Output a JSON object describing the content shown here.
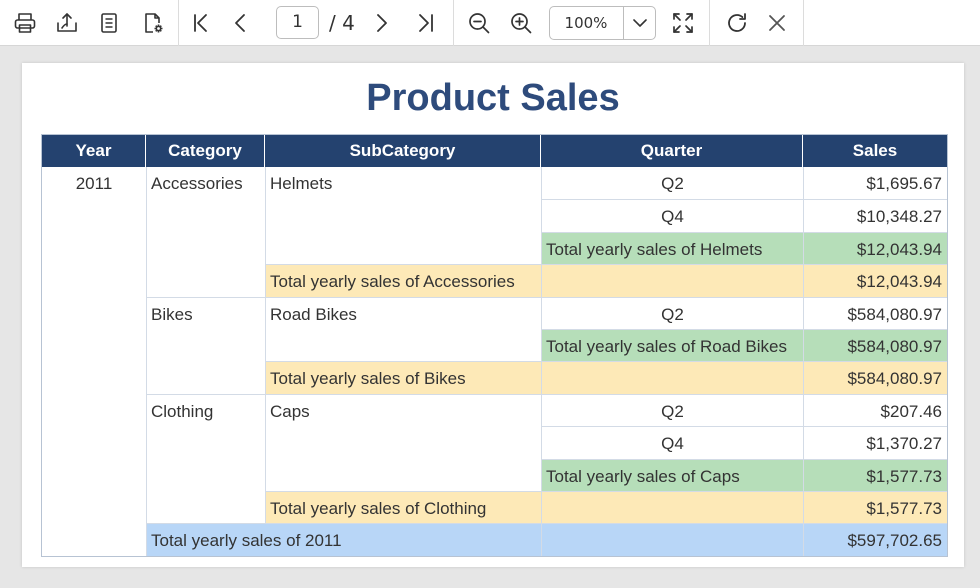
{
  "toolbar": {
    "page_current": "1",
    "page_total": "/ 4",
    "zoom": "100%"
  },
  "report": {
    "title": "Product Sales",
    "headers": [
      "Year",
      "Category",
      "SubCategory",
      "Quarter",
      "Sales"
    ],
    "year": "2011",
    "categories": {
      "accessories": "Accessories",
      "bikes": "Bikes",
      "clothing": "Clothing"
    },
    "subcategories": {
      "helmets": "Helmets",
      "road_bikes": "Road Bikes",
      "caps": "Caps"
    },
    "quarters": {
      "helmets_q1": "Q2",
      "helmets_q2": "Q4",
      "road_bikes_q1": "Q2",
      "caps_q1": "Q2",
      "caps_q2": "Q4"
    },
    "sales": {
      "helmets_q1": "$1,695.67",
      "helmets_q2": "$10,348.27",
      "road_bikes_q1": "$584,080.97",
      "caps_q1": "$207.46",
      "caps_q2": "$1,370.27"
    },
    "totals": {
      "helmets_label": "Total yearly sales of Helmets",
      "helmets_value": "$12,043.94",
      "accessories_label": "Total yearly sales of Accessories",
      "accessories_value": "$12,043.94",
      "road_bikes_label": "Total yearly sales of Road Bikes",
      "road_bikes_value": "$584,080.97",
      "bikes_label": "Total yearly sales of Bikes",
      "bikes_value": "$584,080.97",
      "caps_label": "Total yearly sales of Caps",
      "caps_value": "$1,577.73",
      "clothing_label": "Total yearly sales of Clothing",
      "clothing_value": "$1,577.73",
      "year_label": "Total yearly sales of 2011",
      "year_value": "$597,702.65"
    },
    "colors": {
      "header": "#24426f",
      "title": "#2e4b7c",
      "subcategory_total": "#b6deb9",
      "category_total": "#fde9b7",
      "year_total": "#b8d6f7"
    }
  }
}
